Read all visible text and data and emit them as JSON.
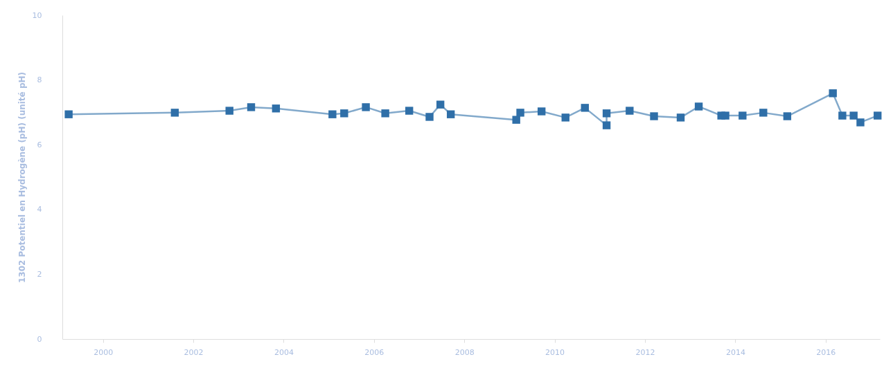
{
  "chart_data": {
    "type": "line",
    "ylabel": "1302 Potentiel en Hydrogène (pH) (unité pH)",
    "x": [
      1999.24,
      2001.59,
      2002.8,
      2003.28,
      2003.83,
      2005.08,
      2005.34,
      2005.82,
      2006.25,
      2006.78,
      2007.23,
      2007.47,
      2007.7,
      2009.15,
      2009.24,
      2009.71,
      2010.24,
      2010.67,
      2011.15,
      2011.15,
      2011.66,
      2012.2,
      2012.79,
      2013.19,
      2013.69,
      2013.78,
      2014.16,
      2014.62,
      2015.15,
      2016.16,
      2016.37,
      2016.62,
      2016.77,
      2017.15
    ],
    "series": [
      {
        "color": "#2f6fa8",
        "values": [
          6.94,
          6.99,
          7.05,
          7.16,
          7.12,
          6.94,
          6.97,
          7.16,
          6.97,
          7.05,
          6.86,
          7.24,
          6.94,
          6.77,
          6.99,
          7.03,
          6.84,
          7.14,
          6.6,
          6.97,
          7.05,
          6.88,
          6.84,
          7.18,
          6.9,
          6.9,
          6.9,
          6.99,
          6.88,
          7.59,
          6.9,
          6.9,
          6.69,
          6.9
        ]
      }
    ],
    "xlim": [
      1999.1,
      2017.2
    ],
    "xticks": [
      2000,
      2002,
      2004,
      2006,
      2008,
      2010,
      2012,
      2014,
      2016
    ],
    "ylim": [
      0,
      10
    ],
    "yticks": [
      0,
      2,
      4,
      6,
      8,
      10
    ],
    "marker": "square",
    "line_style": "solid",
    "grid": false,
    "legend": false
  }
}
